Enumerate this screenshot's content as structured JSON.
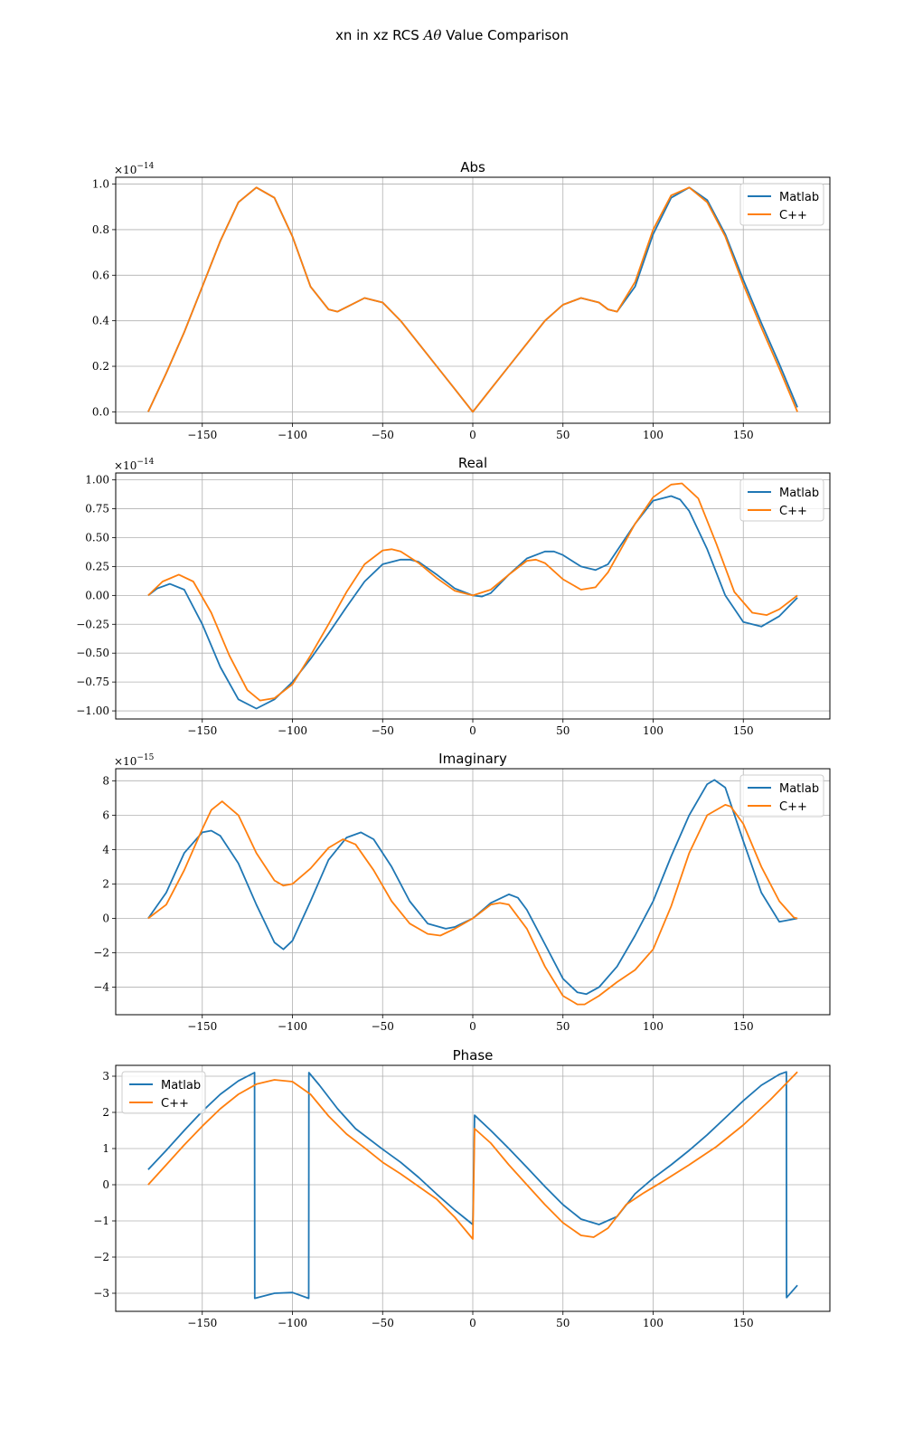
{
  "figure_title_prefix": "xn in xz RCS",
  "figure_title_symbol": "Aθ",
  "figure_title_suffix": "Value Comparison",
  "colors": {
    "matlab": "#1f77b4",
    "cpp": "#ff7f0e"
  },
  "chart_data": [
    {
      "type": "line",
      "title": "Abs",
      "offset_text": "×10",
      "offset_exp": "−14",
      "xlim": [
        -198,
        198
      ],
      "ylim": [
        -0.05,
        1.03
      ],
      "grid": true,
      "legend_position": "upper right",
      "x_ticks": [
        -150,
        -100,
        -50,
        0,
        50,
        100,
        150
      ],
      "x_tick_labels": [
        "−150",
        "−100",
        "−50",
        "0",
        "50",
        "100",
        "150"
      ],
      "y_ticks": [
        0.0,
        0.2,
        0.4,
        0.6,
        0.8,
        1.0
      ],
      "y_tick_labels": [
        "0.0",
        "0.2",
        "0.4",
        "0.6",
        "0.8",
        "1.0"
      ],
      "series": [
        {
          "name": "Matlab",
          "color": "#1f77b4",
          "x": [
            -180,
            -170,
            -160,
            -150,
            -140,
            -130,
            -120,
            -110,
            -100,
            -90,
            -80,
            -75,
            -70,
            -60,
            -50,
            -40,
            -30,
            -20,
            -10,
            0,
            10,
            20,
            30,
            40,
            50,
            60,
            70,
            75,
            80,
            90,
            100,
            110,
            120,
            130,
            140,
            150,
            160,
            170,
            180
          ],
          "y": [
            0.0,
            0.17,
            0.35,
            0.55,
            0.75,
            0.92,
            0.985,
            0.94,
            0.77,
            0.55,
            0.45,
            0.44,
            0.46,
            0.5,
            0.48,
            0.4,
            0.3,
            0.2,
            0.1,
            0.0,
            0.1,
            0.2,
            0.3,
            0.4,
            0.47,
            0.5,
            0.48,
            0.45,
            0.44,
            0.55,
            0.78,
            0.94,
            0.985,
            0.93,
            0.78,
            0.58,
            0.39,
            0.21,
            0.02
          ]
        },
        {
          "name": "C++",
          "color": "#ff7f0e",
          "x": [
            -180,
            -170,
            -160,
            -150,
            -140,
            -130,
            -120,
            -110,
            -100,
            -90,
            -80,
            -75,
            -70,
            -60,
            -50,
            -40,
            -30,
            -20,
            -10,
            0,
            10,
            20,
            30,
            40,
            50,
            60,
            70,
            75,
            80,
            90,
            100,
            110,
            120,
            130,
            140,
            150,
            160,
            170,
            180
          ],
          "y": [
            0.0,
            0.17,
            0.35,
            0.55,
            0.75,
            0.92,
            0.985,
            0.94,
            0.77,
            0.55,
            0.45,
            0.44,
            0.46,
            0.5,
            0.48,
            0.4,
            0.3,
            0.2,
            0.1,
            0.0,
            0.1,
            0.2,
            0.3,
            0.4,
            0.47,
            0.5,
            0.48,
            0.45,
            0.44,
            0.57,
            0.8,
            0.95,
            0.985,
            0.92,
            0.77,
            0.56,
            0.37,
            0.19,
            0.0
          ]
        }
      ]
    },
    {
      "type": "line",
      "title": "Real",
      "offset_text": "×10",
      "offset_exp": "−14",
      "xlim": [
        -198,
        198
      ],
      "ylim": [
        -1.07,
        1.06
      ],
      "grid": true,
      "legend_position": "upper right",
      "x_ticks": [
        -150,
        -100,
        -50,
        0,
        50,
        100,
        150
      ],
      "x_tick_labels": [
        "−150",
        "−100",
        "−50",
        "0",
        "50",
        "100",
        "150"
      ],
      "y_ticks": [
        -1.0,
        -0.75,
        -0.5,
        -0.25,
        0.0,
        0.25,
        0.5,
        0.75,
        1.0
      ],
      "y_tick_labels": [
        "−1.00",
        "−0.75",
        "−0.50",
        "−0.25",
        "0.00",
        "0.25",
        "0.50",
        "0.75",
        "1.00"
      ],
      "series": [
        {
          "name": "Matlab",
          "color": "#1f77b4",
          "x": [
            -180,
            -175,
            -168,
            -160,
            -150,
            -140,
            -130,
            -120,
            -110,
            -100,
            -90,
            -80,
            -70,
            -60,
            -50,
            -40,
            -35,
            -30,
            -20,
            -10,
            0,
            5,
            10,
            20,
            30,
            40,
            45,
            50,
            60,
            68,
            75,
            90,
            100,
            110,
            115,
            120,
            130,
            140,
            150,
            160,
            170,
            180
          ],
          "y": [
            0.0,
            0.06,
            0.1,
            0.05,
            -0.25,
            -0.62,
            -0.9,
            -0.98,
            -0.9,
            -0.75,
            -0.55,
            -0.33,
            -0.1,
            0.12,
            0.27,
            0.31,
            0.31,
            0.29,
            0.18,
            0.06,
            0.0,
            -0.01,
            0.02,
            0.18,
            0.32,
            0.38,
            0.38,
            0.35,
            0.25,
            0.22,
            0.27,
            0.62,
            0.82,
            0.86,
            0.83,
            0.73,
            0.4,
            0.0,
            -0.23,
            -0.27,
            -0.18,
            -0.02
          ]
        },
        {
          "name": "C++",
          "color": "#ff7f0e",
          "x": [
            -180,
            -172,
            -163,
            -155,
            -145,
            -135,
            -125,
            -118,
            -110,
            -100,
            -90,
            -80,
            -70,
            -60,
            -50,
            -45,
            -40,
            -30,
            -20,
            -10,
            0,
            10,
            20,
            30,
            35,
            40,
            50,
            60,
            68,
            75,
            90,
            100,
            110,
            116,
            125,
            135,
            145,
            155,
            163,
            170,
            180
          ],
          "y": [
            0.0,
            0.12,
            0.18,
            0.12,
            -0.15,
            -0.52,
            -0.82,
            -0.91,
            -0.89,
            -0.77,
            -0.52,
            -0.25,
            0.03,
            0.27,
            0.39,
            0.4,
            0.38,
            0.28,
            0.15,
            0.04,
            0.0,
            0.05,
            0.18,
            0.3,
            0.31,
            0.28,
            0.14,
            0.05,
            0.07,
            0.2,
            0.62,
            0.85,
            0.96,
            0.97,
            0.84,
            0.45,
            0.03,
            -0.15,
            -0.17,
            -0.12,
            0.0
          ]
        }
      ]
    },
    {
      "type": "line",
      "title": "Imaginary",
      "offset_text": "×10",
      "offset_exp": "−15",
      "xlim": [
        -198,
        198
      ],
      "ylim": [
        -5.6,
        8.7
      ],
      "grid": true,
      "legend_position": "upper right",
      "x_ticks": [
        -150,
        -100,
        -50,
        0,
        50,
        100,
        150
      ],
      "x_tick_labels": [
        "−150",
        "−100",
        "−50",
        "0",
        "50",
        "100",
        "150"
      ],
      "y_ticks": [
        -4,
        -2,
        0,
        2,
        4,
        6,
        8
      ],
      "y_tick_labels": [
        "−4",
        "−2",
        "0",
        "2",
        "4",
        "6",
        "8"
      ],
      "series": [
        {
          "name": "Matlab",
          "color": "#1f77b4",
          "x": [
            -180,
            -170,
            -160,
            -150,
            -145,
            -140,
            -130,
            -120,
            -110,
            -105,
            -100,
            -90,
            -80,
            -70,
            -62,
            -55,
            -45,
            -35,
            -25,
            -15,
            -10,
            0,
            10,
            20,
            25,
            30,
            40,
            50,
            58,
            63,
            70,
            80,
            90,
            100,
            110,
            120,
            130,
            134,
            140,
            150,
            160,
            170,
            175,
            180
          ],
          "y": [
            0.0,
            1.5,
            3.8,
            5.0,
            5.1,
            4.8,
            3.2,
            0.8,
            -1.4,
            -1.8,
            -1.3,
            1.0,
            3.4,
            4.7,
            5.0,
            4.6,
            3.0,
            1.0,
            -0.3,
            -0.6,
            -0.5,
            0.0,
            0.9,
            1.4,
            1.2,
            0.5,
            -1.5,
            -3.5,
            -4.3,
            -4.4,
            -4.0,
            -2.8,
            -1.0,
            1.0,
            3.6,
            6.0,
            7.8,
            8.05,
            7.6,
            4.5,
            1.5,
            -0.2,
            -0.1,
            0.0
          ]
        },
        {
          "name": "C++",
          "color": "#ff7f0e",
          "x": [
            -180,
            -170,
            -160,
            -150,
            -145,
            -139,
            -130,
            -120,
            -110,
            -105,
            -100,
            -90,
            -80,
            -72,
            -65,
            -55,
            -45,
            -35,
            -25,
            -18,
            -10,
            0,
            10,
            15,
            20,
            30,
            40,
            50,
            58,
            62,
            70,
            80,
            90,
            100,
            110,
            120,
            130,
            140,
            143,
            150,
            160,
            170,
            178,
            180
          ],
          "y": [
            0.0,
            0.8,
            2.8,
            5.2,
            6.3,
            6.8,
            6.0,
            3.8,
            2.2,
            1.9,
            2.0,
            2.9,
            4.1,
            4.6,
            4.3,
            2.8,
            1.0,
            -0.3,
            -0.9,
            -1.0,
            -0.6,
            0.0,
            0.8,
            0.9,
            0.8,
            -0.6,
            -2.8,
            -4.5,
            -5.0,
            -5.0,
            -4.5,
            -3.7,
            -3.0,
            -1.8,
            0.7,
            3.8,
            6.0,
            6.6,
            6.5,
            5.5,
            3.0,
            1.0,
            0.05,
            0.0
          ]
        }
      ]
    },
    {
      "type": "line",
      "title": "Phase",
      "xlim": [
        -198,
        198
      ],
      "ylim": [
        -3.5,
        3.3
      ],
      "grid": true,
      "legend_position": "upper left",
      "x_ticks": [
        -150,
        -100,
        -50,
        0,
        50,
        100,
        150
      ],
      "x_tick_labels": [
        "−150",
        "−100",
        "−50",
        "0",
        "50",
        "100",
        "150"
      ],
      "y_ticks": [
        -3,
        -2,
        -1,
        0,
        1,
        2,
        3
      ],
      "y_tick_labels": [
        "−3",
        "−2",
        "−1",
        "0",
        "1",
        "2",
        "3"
      ],
      "series": [
        {
          "name": "Matlab",
          "color": "#1f77b4",
          "x": [
            -180,
            -170,
            -160,
            -150,
            -140,
            -130,
            -121,
            -120.9,
            -110,
            -100,
            -91,
            -90.9,
            -85,
            -75,
            -65,
            -50,
            -40,
            -30,
            -20,
            -10,
            0,
            0.01,
            1,
            10,
            20,
            30,
            40,
            50,
            60,
            70,
            80,
            90,
            100,
            110,
            120,
            130,
            140,
            150,
            160,
            170,
            173.9,
            174,
            180
          ],
          "y": [
            0.42,
            0.95,
            1.5,
            2.03,
            2.5,
            2.87,
            3.1,
            -3.14,
            -3.0,
            -2.98,
            -3.14,
            3.1,
            2.75,
            2.1,
            1.55,
            0.98,
            0.62,
            0.2,
            -0.26,
            -0.7,
            -1.1,
            -1.1,
            1.92,
            1.5,
            1.0,
            0.48,
            -0.05,
            -0.55,
            -0.95,
            -1.1,
            -0.88,
            -0.25,
            0.18,
            0.55,
            0.95,
            1.38,
            1.85,
            2.32,
            2.75,
            3.05,
            3.12,
            -3.12,
            -2.78
          ]
        },
        {
          "name": "C++",
          "color": "#ff7f0e",
          "x": [
            -180,
            -170,
            -160,
            -150,
            -140,
            -130,
            -120,
            -110,
            -100,
            -90,
            -80,
            -70,
            -60,
            -50,
            -40,
            -30,
            -20,
            -10,
            0,
            0.01,
            1,
            10,
            20,
            30,
            40,
            50,
            60,
            67,
            75,
            85,
            95,
            105,
            120,
            135,
            150,
            165,
            180
          ],
          "y": [
            0.0,
            0.55,
            1.1,
            1.62,
            2.1,
            2.5,
            2.78,
            2.9,
            2.85,
            2.5,
            1.9,
            1.4,
            1.02,
            0.62,
            0.3,
            -0.05,
            -0.4,
            -0.9,
            -1.5,
            -1.5,
            1.55,
            1.15,
            0.55,
            0.0,
            -0.55,
            -1.05,
            -1.4,
            -1.45,
            -1.2,
            -0.55,
            -0.22,
            0.08,
            0.55,
            1.05,
            1.65,
            2.35,
            3.12
          ]
        }
      ]
    }
  ]
}
